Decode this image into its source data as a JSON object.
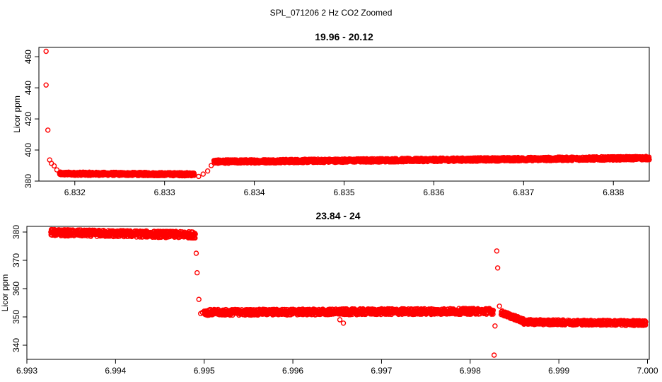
{
  "figure": {
    "suptitle": "SPL_071206  2 Hz CO2 Zoomed",
    "marker_color": "#ff0000"
  },
  "chart_data": [
    {
      "type": "scatter",
      "title": "19.96 - 20.12",
      "xlabel": "",
      "ylabel": "Licor ppm",
      "xlim": [
        6.8316,
        6.8384
      ],
      "ylim": [
        380,
        466
      ],
      "x_ticks": [
        "6.832",
        "6.833",
        "6.834",
        "6.835",
        "6.836",
        "6.837",
        "6.838"
      ],
      "y_ticks": [
        "380",
        "400",
        "420",
        "440",
        "460"
      ],
      "grid": false,
      "marker": "open-circle",
      "segments": [
        {
          "x": [
            6.83168,
            6.83168,
            6.8317,
            6.83172,
            6.83174,
            6.83177,
            6.8318
          ],
          "y": [
            463.5,
            441.8,
            412.8,
            393.6,
            391.4,
            389.8,
            387.2
          ]
        },
        {
          "x_start": 6.83183,
          "x_end": 6.83333,
          "y_start": 384.8,
          "y_end": 384.4,
          "noise": 1.3
        },
        {
          "x": [
            6.83333,
            6.83338,
            6.83343,
            6.83348,
            6.83352
          ],
          "y": [
            384.2,
            383.0,
            384.5,
            386.5,
            390.0
          ]
        },
        {
          "x_start": 6.83355,
          "x_end": 6.8384,
          "y_start": 392.5,
          "y_end": 394.8,
          "noise": 1.4
        }
      ]
    },
    {
      "type": "scatter",
      "title": "23.84 - 24",
      "xlabel": "",
      "ylabel": "Licor ppm",
      "xlim": [
        6.993,
        7.00002
      ],
      "ylim": [
        335,
        382
      ],
      "x_ticks": [
        "6.993",
        "6.994",
        "6.995",
        "6.996",
        "6.997",
        "6.998",
        "6.999",
        "7.000"
      ],
      "y_ticks": [
        "340",
        "350",
        "360",
        "370",
        "380"
      ],
      "grid": false,
      "marker": "open-circle",
      "segments": [
        {
          "x_start": 6.99327,
          "x_end": 6.9949,
          "y_start": 379.8,
          "y_end": 379.0,
          "noise": 1.4
        },
        {
          "x": [
            6.99491,
            6.99492,
            6.99494,
            6.99496,
            6.99498
          ],
          "y": [
            372.5,
            365.6,
            356.2,
            351.2,
            351.6
          ]
        },
        {
          "x_start": 6.995,
          "x_end": 6.99826,
          "y_start": 351.6,
          "y_end": 352.0,
          "noise": 1.3
        },
        {
          "x": [
            6.99653,
            6.99657,
            6.99827,
            6.99828,
            6.9983,
            6.99831,
            6.99833
          ],
          "y": [
            349.0,
            347.8,
            336.5,
            346.8,
            373.3,
            367.3,
            353.8
          ]
        },
        {
          "x_start": 6.99835,
          "x_end": 6.9986,
          "y_start": 351.5,
          "y_end": 348.6,
          "noise": 1.0
        },
        {
          "x_start": 6.9986,
          "x_end": 6.99998,
          "y_start": 348.2,
          "y_end": 347.8,
          "noise": 1.1
        }
      ]
    }
  ]
}
